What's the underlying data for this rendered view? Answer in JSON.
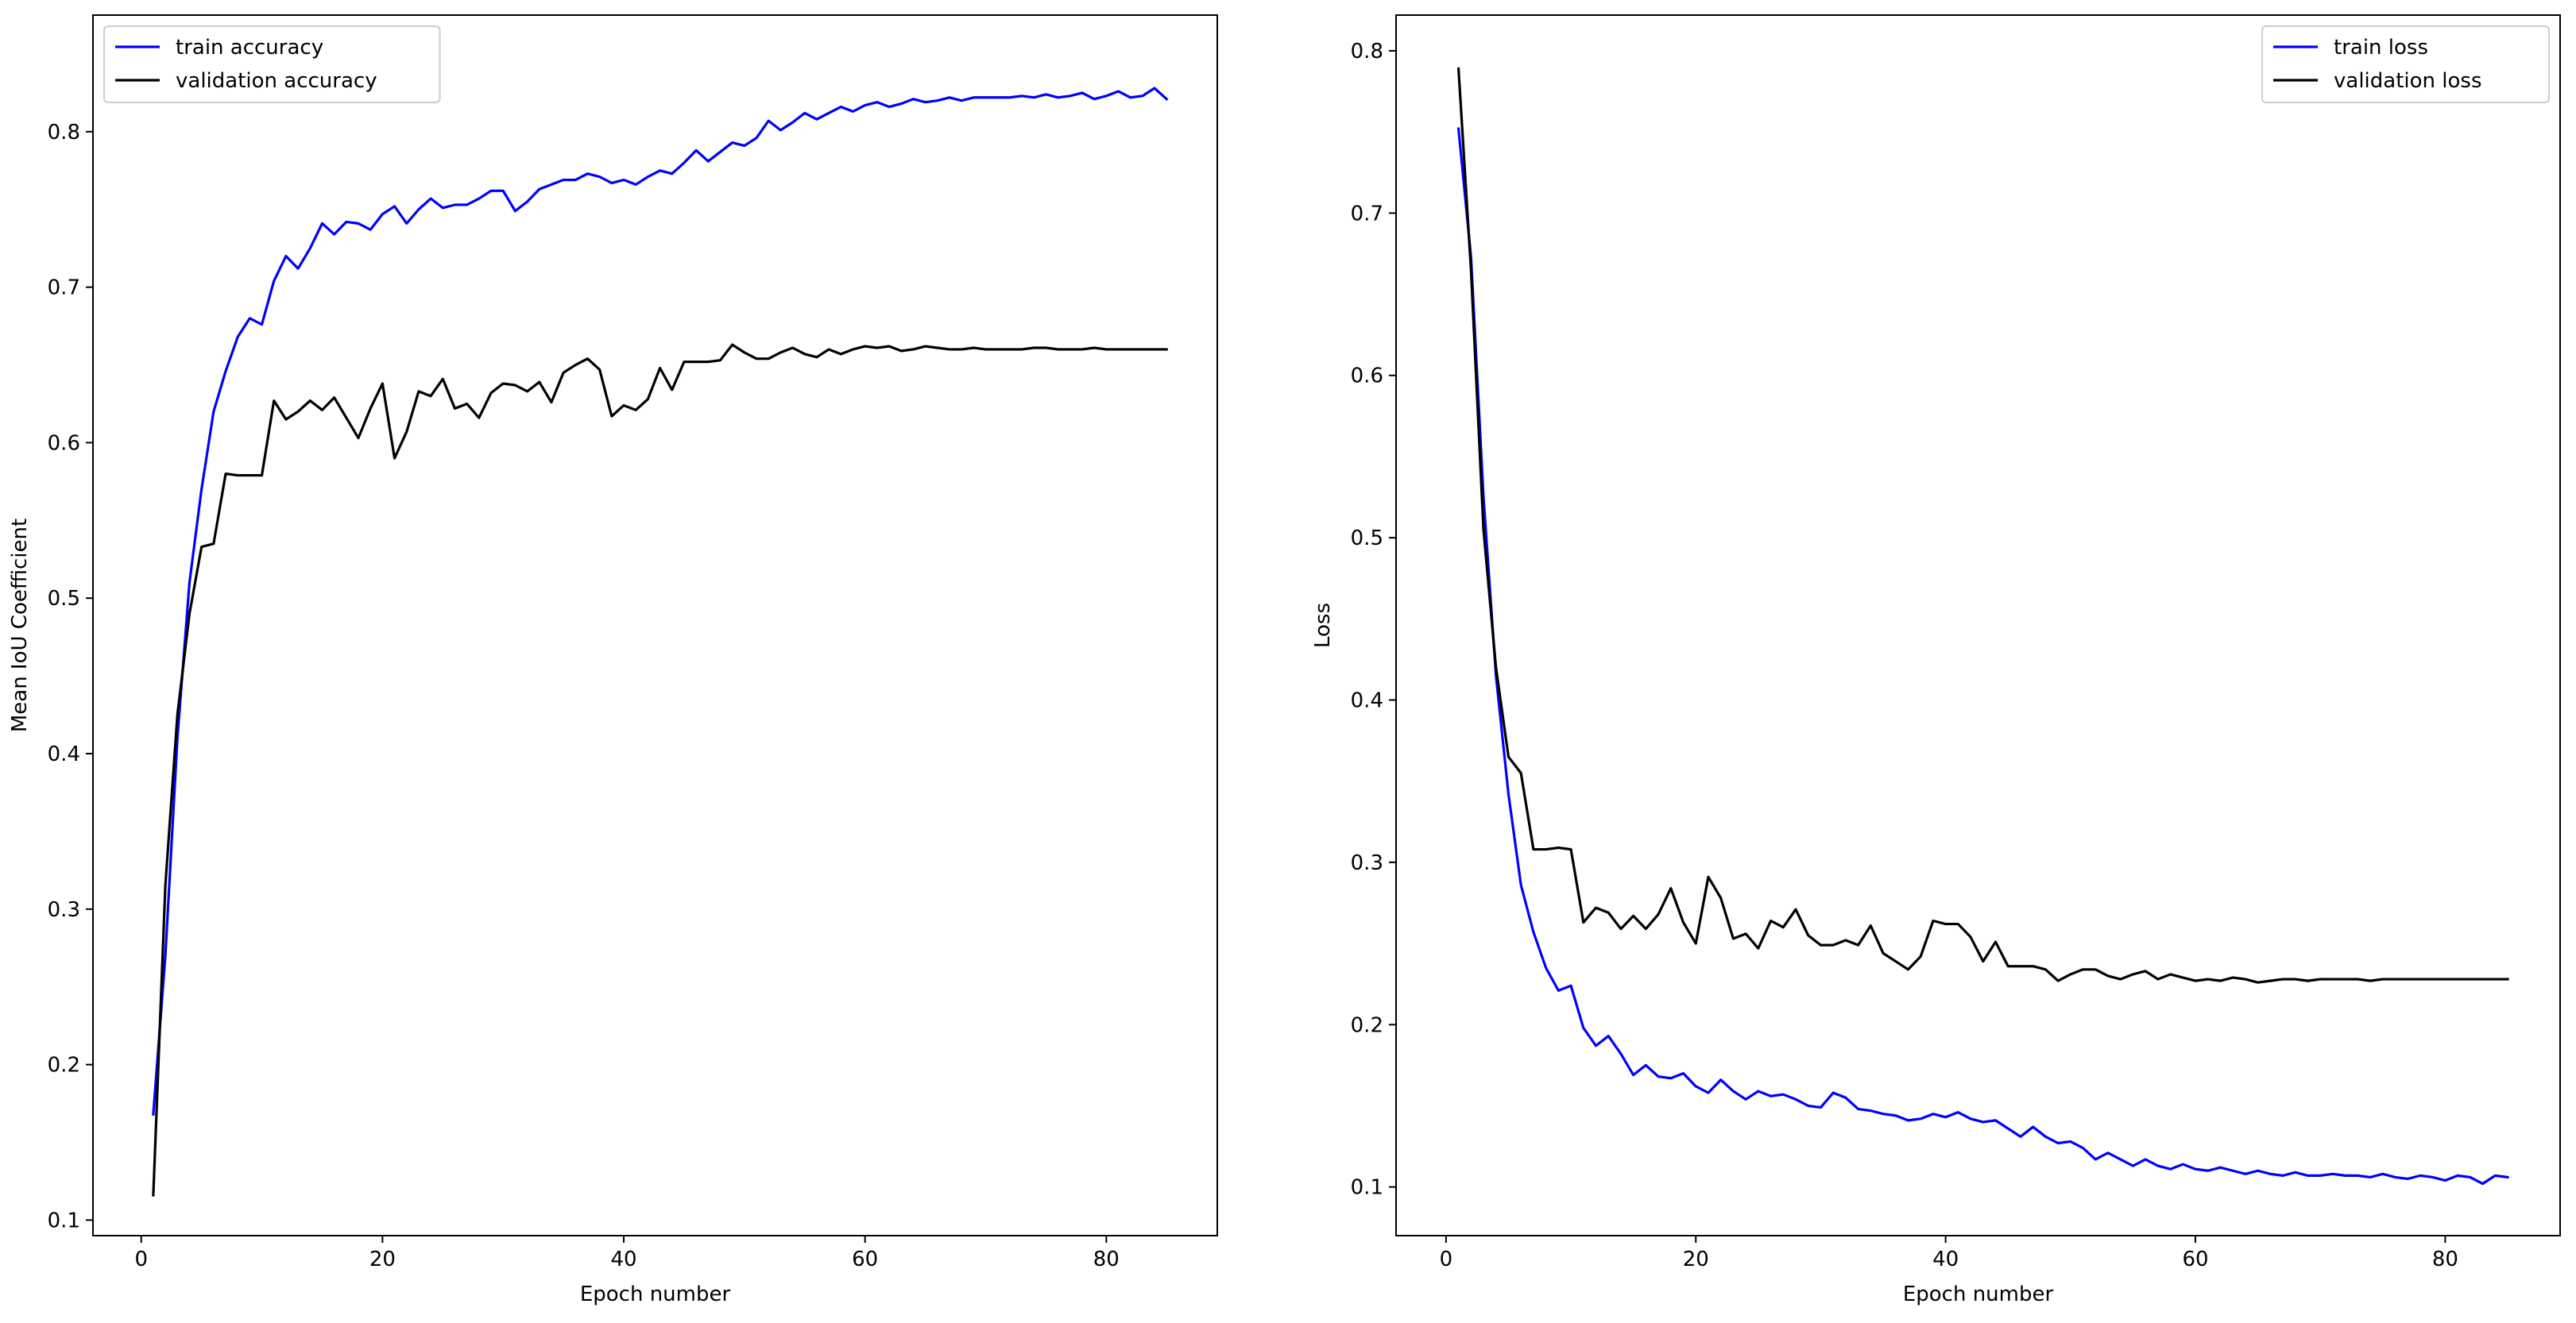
{
  "chart_data": [
    {
      "type": "line",
      "xlabel": "Epoch number",
      "ylabel": "Mean IoU Coefficient",
      "xlim": [
        -4,
        89.2
      ],
      "ylim": [
        0.09,
        0.875
      ],
      "xticks": [
        0,
        20,
        40,
        60,
        80
      ],
      "yticks": [
        0.1,
        0.2,
        0.3,
        0.4,
        0.5,
        0.6,
        0.7,
        0.8
      ],
      "grid": false,
      "legend_position": "upper left",
      "series": [
        {
          "name": "train accuracy",
          "color": "#0000ff",
          "x": [
            1,
            2,
            3,
            4,
            5,
            6,
            7,
            8,
            9,
            10,
            11,
            12,
            13,
            14,
            15,
            16,
            17,
            18,
            19,
            20,
            21,
            22,
            23,
            24,
            25,
            26,
            27,
            28,
            29,
            30,
            31,
            32,
            33,
            34,
            35,
            36,
            37,
            38,
            39,
            40,
            41,
            42,
            43,
            44,
            45,
            46,
            47,
            48,
            49,
            50,
            51,
            52,
            53,
            54,
            55,
            56,
            57,
            58,
            59,
            60,
            61,
            62,
            63,
            64,
            65,
            66,
            67,
            68,
            69,
            70,
            71,
            72,
            73,
            74,
            75,
            76,
            77,
            78,
            79,
            80,
            81,
            82,
            83,
            84,
            85
          ],
          "values": [
            0.168,
            0.27,
            0.41,
            0.51,
            0.57,
            0.62,
            0.646,
            0.668,
            0.68,
            0.676,
            0.704,
            0.72,
            0.712,
            0.725,
            0.741,
            0.734,
            0.742,
            0.741,
            0.737,
            0.747,
            0.752,
            0.741,
            0.75,
            0.757,
            0.751,
            0.753,
            0.753,
            0.757,
            0.762,
            0.762,
            0.749,
            0.755,
            0.763,
            0.766,
            0.769,
            0.769,
            0.773,
            0.771,
            0.767,
            0.769,
            0.766,
            0.771,
            0.775,
            0.773,
            0.78,
            0.788,
            0.781,
            0.787,
            0.793,
            0.791,
            0.796,
            0.807,
            0.801,
            0.806,
            0.812,
            0.808,
            0.812,
            0.816,
            0.813,
            0.817,
            0.819,
            0.816,
            0.818,
            0.821,
            0.819,
            0.82,
            0.822,
            0.82,
            0.822,
            0.822,
            0.822,
            0.822,
            0.823,
            0.822,
            0.824,
            0.822,
            0.823,
            0.825,
            0.821,
            0.823,
            0.826,
            0.822,
            0.823,
            0.828,
            0.821
          ]
        },
        {
          "name": "validation accuracy",
          "color": "#000000",
          "x": [
            1,
            2,
            3,
            4,
            5,
            6,
            7,
            8,
            9,
            10,
            11,
            12,
            13,
            14,
            15,
            16,
            17,
            18,
            19,
            20,
            21,
            22,
            23,
            24,
            25,
            26,
            27,
            28,
            29,
            30,
            31,
            32,
            33,
            34,
            35,
            36,
            37,
            38,
            39,
            40,
            41,
            42,
            43,
            44,
            45,
            46,
            47,
            48,
            49,
            50,
            51,
            52,
            53,
            54,
            55,
            56,
            57,
            58,
            59,
            60,
            61,
            62,
            63,
            64,
            65,
            66,
            67,
            68,
            69,
            70,
            71,
            72,
            73,
            74,
            75,
            76,
            77,
            78,
            79,
            80,
            81,
            82,
            83,
            84,
            85
          ],
          "values": [
            0.116,
            0.315,
            0.425,
            0.49,
            0.533,
            0.535,
            0.58,
            0.579,
            0.579,
            0.579,
            0.627,
            0.615,
            0.62,
            0.627,
            0.621,
            0.629,
            0.616,
            0.603,
            0.622,
            0.638,
            0.59,
            0.607,
            0.633,
            0.63,
            0.641,
            0.622,
            0.625,
            0.616,
            0.632,
            0.638,
            0.637,
            0.633,
            0.639,
            0.626,
            0.645,
            0.65,
            0.654,
            0.647,
            0.617,
            0.624,
            0.621,
            0.628,
            0.648,
            0.634,
            0.652,
            0.652,
            0.652,
            0.653,
            0.663,
            0.658,
            0.654,
            0.654,
            0.658,
            0.661,
            0.657,
            0.655,
            0.66,
            0.657,
            0.66,
            0.662,
            0.661,
            0.662,
            0.659,
            0.66,
            0.662,
            0.661,
            0.66,
            0.66,
            0.661,
            0.66,
            0.66,
            0.66,
            0.66,
            0.661,
            0.661,
            0.66,
            0.66,
            0.66,
            0.661,
            0.66,
            0.66,
            0.66,
            0.66,
            0.66,
            0.66
          ]
        }
      ]
    },
    {
      "type": "line",
      "xlabel": "Epoch number",
      "ylabel": "Loss",
      "xlim": [
        -4,
        89.2
      ],
      "ylim": [
        0.07,
        0.822
      ],
      "xticks": [
        0,
        20,
        40,
        60,
        80
      ],
      "yticks": [
        0.1,
        0.2,
        0.3,
        0.4,
        0.5,
        0.6,
        0.7,
        0.8
      ],
      "grid": false,
      "legend_position": "upper right",
      "series": [
        {
          "name": "train loss",
          "color": "#0000ff",
          "x": [
            1,
            2,
            3,
            4,
            5,
            6,
            7,
            8,
            9,
            10,
            11,
            12,
            13,
            14,
            15,
            16,
            17,
            18,
            19,
            20,
            21,
            22,
            23,
            24,
            25,
            26,
            27,
            28,
            29,
            30,
            31,
            32,
            33,
            34,
            35,
            36,
            37,
            38,
            39,
            40,
            41,
            42,
            43,
            44,
            45,
            46,
            47,
            48,
            49,
            50,
            51,
            52,
            53,
            54,
            55,
            56,
            57,
            58,
            59,
            60,
            61,
            62,
            63,
            64,
            65,
            66,
            67,
            68,
            69,
            70,
            71,
            72,
            73,
            74,
            75,
            76,
            77,
            78,
            79,
            80,
            81,
            82,
            83,
            84,
            85
          ],
          "values": [
            0.752,
            0.673,
            0.525,
            0.415,
            0.342,
            0.286,
            0.257,
            0.235,
            0.221,
            0.224,
            0.198,
            0.187,
            0.193,
            0.182,
            0.169,
            0.175,
            0.168,
            0.167,
            0.17,
            0.162,
            0.158,
            0.166,
            0.159,
            0.154,
            0.159,
            0.156,
            0.157,
            0.154,
            0.15,
            0.149,
            0.158,
            0.155,
            0.148,
            0.147,
            0.145,
            0.144,
            0.141,
            0.142,
            0.145,
            0.143,
            0.146,
            0.142,
            0.14,
            0.141,
            0.136,
            0.131,
            0.137,
            0.131,
            0.127,
            0.128,
            0.124,
            0.117,
            0.121,
            0.117,
            0.113,
            0.117,
            0.113,
            0.111,
            0.114,
            0.111,
            0.11,
            0.112,
            0.11,
            0.108,
            0.11,
            0.108,
            0.107,
            0.109,
            0.107,
            0.107,
            0.108,
            0.107,
            0.107,
            0.106,
            0.108,
            0.106,
            0.105,
            0.107,
            0.106,
            0.104,
            0.107,
            0.106,
            0.102,
            0.107,
            0.106
          ]
        },
        {
          "name": "validation loss",
          "color": "#000000",
          "x": [
            1,
            2,
            3,
            4,
            5,
            6,
            7,
            8,
            9,
            10,
            11,
            12,
            13,
            14,
            15,
            16,
            17,
            18,
            19,
            20,
            21,
            22,
            23,
            24,
            25,
            26,
            27,
            28,
            29,
            30,
            31,
            32,
            33,
            34,
            35,
            36,
            37,
            38,
            39,
            40,
            41,
            42,
            43,
            44,
            45,
            46,
            47,
            48,
            49,
            50,
            51,
            52,
            53,
            54,
            55,
            56,
            57,
            58,
            59,
            60,
            61,
            62,
            63,
            64,
            65,
            66,
            67,
            68,
            69,
            70,
            71,
            72,
            73,
            74,
            75,
            76,
            77,
            78,
            79,
            80,
            81,
            82,
            83,
            84,
            85
          ],
          "values": [
            0.789,
            0.665,
            0.505,
            0.42,
            0.365,
            0.355,
            0.308,
            0.308,
            0.309,
            0.308,
            0.263,
            0.272,
            0.269,
            0.259,
            0.267,
            0.259,
            0.268,
            0.284,
            0.263,
            0.25,
            0.291,
            0.278,
            0.253,
            0.256,
            0.247,
            0.264,
            0.26,
            0.271,
            0.255,
            0.249,
            0.249,
            0.252,
            0.249,
            0.261,
            0.244,
            0.239,
            0.234,
            0.242,
            0.264,
            0.262,
            0.262,
            0.254,
            0.239,
            0.251,
            0.236,
            0.236,
            0.236,
            0.234,
            0.227,
            0.231,
            0.234,
            0.234,
            0.23,
            0.228,
            0.231,
            0.233,
            0.228,
            0.231,
            0.229,
            0.227,
            0.228,
            0.227,
            0.229,
            0.228,
            0.226,
            0.227,
            0.228,
            0.228,
            0.227,
            0.228,
            0.228,
            0.228,
            0.228,
            0.227,
            0.228,
            0.228,
            0.228,
            0.228,
            0.228,
            0.228,
            0.228,
            0.228,
            0.228,
            0.228,
            0.228
          ]
        }
      ]
    }
  ]
}
